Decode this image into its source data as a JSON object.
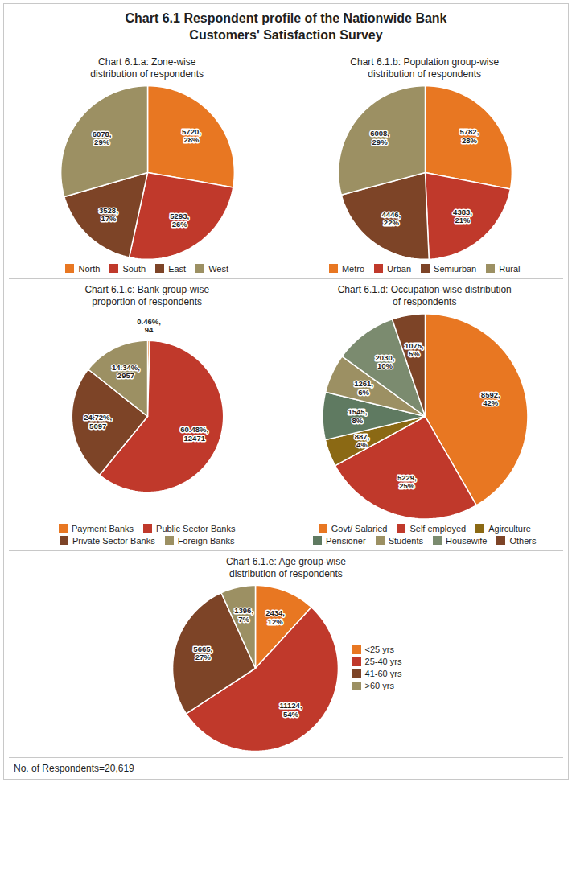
{
  "title": "Chart 6.1 Respondent profile of the Nationwide Bank\nCustomers' Satisfaction Survey",
  "annotations": [
    "No. of Respondents=20,619"
  ],
  "chart_data": [
    {
      "type": "pie",
      "title": "Chart 6.1.a: Zone-wise\ndistribution of respondents",
      "categories": [
        "North",
        "South",
        "East",
        "West"
      ],
      "values": [
        5720,
        5293,
        3528,
        6078
      ],
      "value_labels": [
        "5720,\n28%",
        "5293,\n26%",
        "3528,\n17%",
        "6078,\n29%"
      ],
      "colors": [
        "#E87722",
        "#C0392B",
        "#7D4427",
        "#9C9063"
      ],
      "data_labels": true,
      "legend": "bottom"
    },
    {
      "type": "pie",
      "title": "Chart 6.1.b: Population group-wise\ndistribution of respondents",
      "categories": [
        "Metro",
        "Urban",
        "Semiurban",
        "Rural"
      ],
      "values": [
        5782,
        4383,
        4446,
        6008
      ],
      "value_labels": [
        "5782,\n28%",
        "4383,\n21%",
        "4446,\n22%",
        "6008,\n29%"
      ],
      "colors": [
        "#E87722",
        "#C0392B",
        "#7D4427",
        "#9C9063"
      ],
      "data_labels": true,
      "legend": "bottom"
    },
    {
      "type": "pie",
      "title": "Chart 6.1.c: Bank group-wise\nproportion of respondents",
      "categories": [
        "Payment Banks",
        "Public Sector Banks",
        "Private Sector Banks",
        "Foreign Banks"
      ],
      "values": [
        94,
        12471,
        5097,
        2957
      ],
      "value_labels": [
        "0.46%,\n94",
        "60.48%,\n12471",
        "24.72%,\n5097",
        "14.34%,\n2957"
      ],
      "colors": [
        "#E87722",
        "#C0392B",
        "#7D4427",
        "#9C9063"
      ],
      "data_labels": true,
      "legend": "bottom"
    },
    {
      "type": "pie",
      "title": "Chart 6.1.d: Occupation-wise distribution\nof respondents",
      "categories": [
        "Govt/ Salaried",
        "Self employed",
        "Agirculture",
        "Pensioner",
        "Students",
        "Housewife",
        "Others"
      ],
      "values": [
        8592,
        5229,
        887,
        1545,
        1261,
        2030,
        1075
      ],
      "value_labels": [
        "8592,\n42%",
        "5229,\n25%",
        "887,\n4%",
        "1545,\n8%",
        "1261,\n6%",
        "2030,\n10%",
        "1075,\n5%"
      ],
      "colors": [
        "#E87722",
        "#C0392B",
        "#8B6914",
        "#5F7A61",
        "#9C9063",
        "#7B8B6F",
        "#7D4427"
      ],
      "data_labels": true,
      "legend": "bottom"
    },
    {
      "type": "pie",
      "title": "Chart 6.1.e: Age group-wise\ndistribution of respondents",
      "categories": [
        "<25 yrs",
        "25-40 yrs",
        "41-60 yrs",
        ">60 yrs"
      ],
      "values": [
        2434,
        11124,
        5665,
        1396
      ],
      "value_labels": [
        "2434,\n12%",
        "11124,\n54%",
        "5665,\n27%",
        "1396,\n7%"
      ],
      "colors": [
        "#E87722",
        "#C0392B",
        "#7D4427",
        "#9C9063"
      ],
      "data_labels": true,
      "legend": "right"
    }
  ]
}
